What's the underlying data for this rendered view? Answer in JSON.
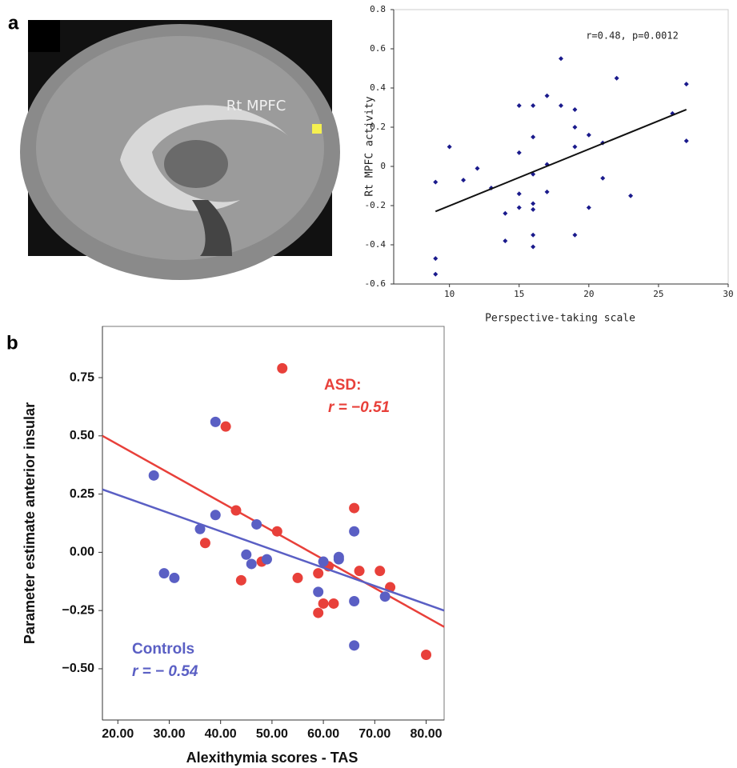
{
  "panels": [
    "a",
    "b"
  ],
  "image": {
    "label": "Rt MPFC"
  },
  "chart_data": [
    {
      "type": "scatter",
      "title": null,
      "x_label": "Perspective-taking scale",
      "y_label": "Rt MPFC activity",
      "annotations": [
        "r=0.48, p=0.0012"
      ],
      "xlim": [
        6,
        30
      ],
      "xticks": [
        10,
        15,
        20,
        25,
        30
      ],
      "ylim": [
        -0.6,
        0.8
      ],
      "yticks": [
        -0.6,
        -0.4,
        -0.2,
        0,
        0.2,
        0.4,
        0.6,
        0.8
      ],
      "series": [
        {
          "name": null,
          "color": "#1a1a8c",
          "x": [
            9,
            10,
            11,
            12,
            13,
            14,
            14,
            15,
            15,
            15,
            15,
            16,
            16,
            16,
            16,
            16,
            16,
            16,
            17,
            17,
            17,
            18,
            18,
            19,
            19,
            19,
            19,
            20,
            20,
            21,
            21,
            22,
            23,
            26,
            27,
            27,
            9,
            9
          ],
          "values": [
            -0.08,
            0.1,
            -0.07,
            -0.01,
            -0.11,
            -0.24,
            -0.38,
            0.31,
            0.07,
            -0.14,
            -0.21,
            0.31,
            0.15,
            -0.04,
            -0.19,
            -0.22,
            -0.35,
            -0.41,
            0.36,
            0.01,
            -0.13,
            0.55,
            0.31,
            0.29,
            0.2,
            0.1,
            -0.35,
            0.16,
            -0.21,
            0.12,
            -0.06,
            0.45,
            -0.15,
            0.27,
            0.42,
            0.13,
            -0.47,
            -0.55
          ],
          "fit": {
            "color": "#111111",
            "x": [
              9,
              27
            ],
            "y": [
              -0.23,
              0.29
            ]
          }
        }
      ]
    },
    {
      "type": "scatter",
      "x_label": "Alexithymia scores - TAS",
      "y_label": "Parameter estimate anterior insular",
      "xlim": [
        17,
        83.5
      ],
      "xticks": [
        {
          "value": 20,
          "label": "20.00"
        },
        {
          "value": 30,
          "label": "30.00"
        },
        {
          "value": 40,
          "label": "40.00"
        },
        {
          "value": 50,
          "label": "50.00"
        },
        {
          "value": 60,
          "label": "60.00"
        },
        {
          "value": 70,
          "label": "70.00"
        },
        {
          "value": 80,
          "label": "80.00"
        }
      ],
      "ylim": [
        -0.72,
        0.97
      ],
      "yticks": [
        {
          "value": -0.5,
          "label": "−0.50"
        },
        {
          "value": -0.25,
          "label": "−0.25"
        },
        {
          "value": 0,
          "label": "0.00"
        },
        {
          "value": 0.25,
          "label": "0.25"
        },
        {
          "value": 0.5,
          "label": "0.50"
        },
        {
          "value": 0.75,
          "label": "0.75"
        }
      ],
      "series": [
        {
          "name": "ASD:",
          "r_label": "r = −0.51",
          "color": "#e8403a",
          "x": [
            41,
            52,
            43,
            37,
            44,
            48,
            51,
            55,
            59,
            59,
            60,
            61,
            62,
            66,
            67,
            71,
            73,
            80
          ],
          "values": [
            0.54,
            0.79,
            0.18,
            0.04,
            -0.12,
            -0.04,
            0.09,
            -0.11,
            -0.09,
            -0.26,
            -0.22,
            -0.06,
            -0.22,
            0.19,
            -0.08,
            -0.08,
            -0.15,
            -0.44
          ],
          "fit": {
            "color": "#e8403a",
            "x": [
              17,
              83.5
            ],
            "y": [
              0.5,
              -0.32
            ]
          }
        },
        {
          "name": "Controls",
          "r_label": "r = − 0.54",
          "color": "#5a5fc4",
          "x": [
            27,
            29,
            31,
            36,
            39,
            39,
            45,
            46,
            47,
            49,
            59,
            60,
            63,
            63,
            66,
            66,
            66,
            72
          ],
          "values": [
            0.33,
            -0.09,
            -0.11,
            0.1,
            0.56,
            0.16,
            -0.01,
            -0.05,
            0.12,
            -0.03,
            -0.17,
            -0.04,
            -0.02,
            -0.03,
            0.09,
            -0.21,
            -0.4,
            -0.19
          ],
          "fit": {
            "color": "#5a5fc4",
            "x": [
              17,
              83.5
            ],
            "y": [
              0.27,
              -0.25
            ]
          }
        }
      ]
    }
  ]
}
